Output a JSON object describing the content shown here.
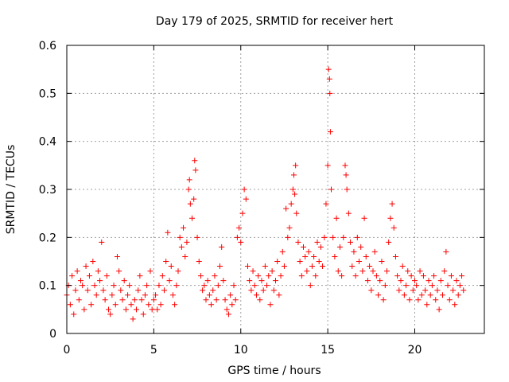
{
  "chart_data": {
    "type": "scatter",
    "title": "Day 179 of 2025, SRMTID for receiver hert",
    "xlabel": "GPS time / hours",
    "ylabel": "SRMTID / TECUs",
    "xlim": [
      0,
      24
    ],
    "ylim": [
      0,
      0.6
    ],
    "xticks": [
      0,
      5,
      10,
      15,
      20
    ],
    "yticks": [
      0,
      0.1,
      0.2,
      0.3,
      0.4,
      0.5,
      0.6
    ],
    "xtick_labels": [
      "0",
      "5",
      "10",
      "15",
      "20"
    ],
    "ytick_labels": [
      "0",
      "0.1",
      "0.2",
      "0.3",
      "0.4",
      "0.5",
      "0.6"
    ],
    "grid": true,
    "marker": "+",
    "color": "#ff0000",
    "series": [
      {
        "name": "SRMTID",
        "points": [
          [
            0.0,
            0.08
          ],
          [
            0.1,
            0.1
          ],
          [
            0.2,
            0.06
          ],
          [
            0.3,
            0.12
          ],
          [
            0.4,
            0.04
          ],
          [
            0.5,
            0.09
          ],
          [
            0.6,
            0.13
          ],
          [
            0.7,
            0.07
          ],
          [
            0.8,
            0.11
          ],
          [
            0.9,
            0.1
          ],
          [
            1.0,
            0.05
          ],
          [
            1.1,
            0.14
          ],
          [
            1.2,
            0.09
          ],
          [
            1.3,
            0.12
          ],
          [
            1.4,
            0.06
          ],
          [
            1.5,
            0.15
          ],
          [
            1.6,
            0.1
          ],
          [
            1.7,
            0.08
          ],
          [
            1.8,
            0.13
          ],
          [
            1.9,
            0.11
          ],
          [
            2.0,
            0.19
          ],
          [
            2.1,
            0.09
          ],
          [
            2.2,
            0.07
          ],
          [
            2.3,
            0.12
          ],
          [
            2.4,
            0.05
          ],
          [
            2.5,
            0.04
          ],
          [
            2.6,
            0.08
          ],
          [
            2.7,
            0.1
          ],
          [
            2.8,
            0.06
          ],
          [
            2.9,
            0.16
          ],
          [
            3.0,
            0.13
          ],
          [
            3.1,
            0.09
          ],
          [
            3.2,
            0.07
          ],
          [
            3.3,
            0.11
          ],
          [
            3.4,
            0.05
          ],
          [
            3.5,
            0.08
          ],
          [
            3.6,
            0.1
          ],
          [
            3.7,
            0.06
          ],
          [
            3.8,
            0.03
          ],
          [
            3.9,
            0.07
          ],
          [
            4.0,
            0.05
          ],
          [
            4.1,
            0.09
          ],
          [
            4.2,
            0.12
          ],
          [
            4.3,
            0.07
          ],
          [
            4.4,
            0.04
          ],
          [
            4.5,
            0.08
          ],
          [
            4.6,
            0.1
          ],
          [
            4.7,
            0.06
          ],
          [
            4.8,
            0.13
          ],
          [
            4.9,
            0.05
          ],
          [
            5.0,
            0.07
          ],
          [
            5.1,
            0.08
          ],
          [
            5.2,
            0.05
          ],
          [
            5.3,
            0.1
          ],
          [
            5.4,
            0.06
          ],
          [
            5.5,
            0.12
          ],
          [
            5.6,
            0.09
          ],
          [
            5.7,
            0.15
          ],
          [
            5.8,
            0.21
          ],
          [
            5.9,
            0.11
          ],
          [
            6.0,
            0.14
          ],
          [
            6.1,
            0.08
          ],
          [
            6.2,
            0.06
          ],
          [
            6.3,
            0.1
          ],
          [
            6.4,
            0.13
          ],
          [
            6.5,
            0.2
          ],
          [
            6.6,
            0.18
          ],
          [
            6.7,
            0.22
          ],
          [
            6.8,
            0.16
          ],
          [
            6.9,
            0.19
          ],
          [
            7.0,
            0.3
          ],
          [
            7.05,
            0.32
          ],
          [
            7.1,
            0.27
          ],
          [
            7.2,
            0.24
          ],
          [
            7.3,
            0.28
          ],
          [
            7.35,
            0.36
          ],
          [
            7.4,
            0.34
          ],
          [
            7.5,
            0.2
          ],
          [
            7.6,
            0.15
          ],
          [
            7.7,
            0.12
          ],
          [
            7.8,
            0.09
          ],
          [
            7.9,
            0.1
          ],
          [
            8.0,
            0.07
          ],
          [
            8.1,
            0.11
          ],
          [
            8.2,
            0.08
          ],
          [
            8.3,
            0.06
          ],
          [
            8.4,
            0.09
          ],
          [
            8.5,
            0.12
          ],
          [
            8.6,
            0.07
          ],
          [
            8.7,
            0.1
          ],
          [
            8.8,
            0.14
          ],
          [
            8.9,
            0.18
          ],
          [
            9.0,
            0.11
          ],
          [
            9.1,
            0.07
          ],
          [
            9.2,
            0.05
          ],
          [
            9.3,
            0.04
          ],
          [
            9.4,
            0.08
          ],
          [
            9.5,
            0.06
          ],
          [
            9.6,
            0.1
          ],
          [
            9.7,
            0.07
          ],
          [
            9.8,
            0.2
          ],
          [
            9.9,
            0.22
          ],
          [
            10.0,
            0.19
          ],
          [
            10.1,
            0.25
          ],
          [
            10.2,
            0.3
          ],
          [
            10.3,
            0.28
          ],
          [
            10.4,
            0.14
          ],
          [
            10.5,
            0.11
          ],
          [
            10.6,
            0.09
          ],
          [
            10.7,
            0.13
          ],
          [
            10.8,
            0.1
          ],
          [
            10.9,
            0.08
          ],
          [
            11.0,
            0.12
          ],
          [
            11.1,
            0.07
          ],
          [
            11.2,
            0.11
          ],
          [
            11.3,
            0.09
          ],
          [
            11.4,
            0.14
          ],
          [
            11.5,
            0.1
          ],
          [
            11.6,
            0.12
          ],
          [
            11.7,
            0.06
          ],
          [
            11.8,
            0.13
          ],
          [
            11.9,
            0.09
          ],
          [
            12.0,
            0.11
          ],
          [
            12.1,
            0.15
          ],
          [
            12.2,
            0.08
          ],
          [
            12.3,
            0.12
          ],
          [
            12.4,
            0.17
          ],
          [
            12.5,
            0.14
          ],
          [
            12.6,
            0.26
          ],
          [
            12.7,
            0.2
          ],
          [
            12.8,
            0.22
          ],
          [
            12.9,
            0.27
          ],
          [
            13.0,
            0.3
          ],
          [
            13.05,
            0.33
          ],
          [
            13.1,
            0.29
          ],
          [
            13.15,
            0.35
          ],
          [
            13.2,
            0.25
          ],
          [
            13.3,
            0.19
          ],
          [
            13.4,
            0.15
          ],
          [
            13.5,
            0.12
          ],
          [
            13.6,
            0.18
          ],
          [
            13.7,
            0.16
          ],
          [
            13.8,
            0.13
          ],
          [
            13.9,
            0.17
          ],
          [
            14.0,
            0.1
          ],
          [
            14.1,
            0.14
          ],
          [
            14.2,
            0.16
          ],
          [
            14.3,
            0.12
          ],
          [
            14.4,
            0.19
          ],
          [
            14.5,
            0.15
          ],
          [
            14.6,
            0.18
          ],
          [
            14.7,
            0.14
          ],
          [
            14.8,
            0.2
          ],
          [
            14.9,
            0.27
          ],
          [
            15.0,
            0.35
          ],
          [
            15.05,
            0.55
          ],
          [
            15.1,
            0.53
          ],
          [
            15.12,
            0.5
          ],
          [
            15.15,
            0.42
          ],
          [
            15.2,
            0.3
          ],
          [
            15.3,
            0.2
          ],
          [
            15.4,
            0.16
          ],
          [
            15.5,
            0.24
          ],
          [
            15.6,
            0.13
          ],
          [
            15.7,
            0.18
          ],
          [
            15.8,
            0.12
          ],
          [
            15.9,
            0.2
          ],
          [
            16.0,
            0.35
          ],
          [
            16.05,
            0.33
          ],
          [
            16.1,
            0.3
          ],
          [
            16.2,
            0.25
          ],
          [
            16.3,
            0.19
          ],
          [
            16.4,
            0.14
          ],
          [
            16.5,
            0.17
          ],
          [
            16.6,
            0.12
          ],
          [
            16.7,
            0.2
          ],
          [
            16.8,
            0.15
          ],
          [
            16.9,
            0.18
          ],
          [
            17.0,
            0.13
          ],
          [
            17.1,
            0.24
          ],
          [
            17.2,
            0.16
          ],
          [
            17.3,
            0.11
          ],
          [
            17.4,
            0.14
          ],
          [
            17.5,
            0.09
          ],
          [
            17.6,
            0.13
          ],
          [
            17.7,
            0.17
          ],
          [
            17.8,
            0.12
          ],
          [
            17.9,
            0.08
          ],
          [
            18.0,
            0.11
          ],
          [
            18.1,
            0.15
          ],
          [
            18.2,
            0.07
          ],
          [
            18.3,
            0.1
          ],
          [
            18.4,
            0.13
          ],
          [
            18.5,
            0.19
          ],
          [
            18.6,
            0.24
          ],
          [
            18.7,
            0.27
          ],
          [
            18.8,
            0.22
          ],
          [
            18.9,
            0.16
          ],
          [
            19.0,
            0.12
          ],
          [
            19.1,
            0.09
          ],
          [
            19.2,
            0.11
          ],
          [
            19.3,
            0.14
          ],
          [
            19.4,
            0.08
          ],
          [
            19.5,
            0.1
          ],
          [
            19.6,
            0.13
          ],
          [
            19.7,
            0.07
          ],
          [
            19.8,
            0.12
          ],
          [
            19.9,
            0.09
          ],
          [
            20.0,
            0.11
          ],
          [
            20.1,
            0.1
          ],
          [
            20.2,
            0.07
          ],
          [
            20.3,
            0.13
          ],
          [
            20.4,
            0.08
          ],
          [
            20.5,
            0.12
          ],
          [
            20.6,
            0.09
          ],
          [
            20.7,
            0.06
          ],
          [
            20.8,
            0.11
          ],
          [
            20.9,
            0.08
          ],
          [
            21.0,
            0.1
          ],
          [
            21.1,
            0.12
          ],
          [
            21.2,
            0.07
          ],
          [
            21.3,
            0.09
          ],
          [
            21.4,
            0.05
          ],
          [
            21.5,
            0.11
          ],
          [
            21.6,
            0.08
          ],
          [
            21.7,
            0.13
          ],
          [
            21.8,
            0.17
          ],
          [
            21.9,
            0.1
          ],
          [
            22.0,
            0.07
          ],
          [
            22.1,
            0.12
          ],
          [
            22.2,
            0.09
          ],
          [
            22.3,
            0.06
          ],
          [
            22.4,
            0.11
          ],
          [
            22.5,
            0.08
          ],
          [
            22.6,
            0.1
          ],
          [
            22.7,
            0.12
          ],
          [
            22.8,
            0.09
          ]
        ]
      }
    ]
  }
}
